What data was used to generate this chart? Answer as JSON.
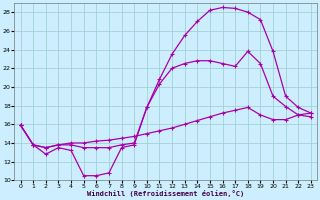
{
  "background_color": "#cceeff",
  "grid_color": "#99cccc",
  "line_color": "#aa00aa",
  "xlabel": "Windchill (Refroidissement éolien,°C)",
  "xlim": [
    -0.5,
    23.5
  ],
  "ylim": [
    10,
    29
  ],
  "xticks": [
    0,
    1,
    2,
    3,
    4,
    5,
    6,
    7,
    8,
    9,
    10,
    11,
    12,
    13,
    14,
    15,
    16,
    17,
    18,
    19,
    20,
    21,
    22,
    23
  ],
  "yticks": [
    10,
    12,
    14,
    16,
    18,
    20,
    22,
    24,
    26,
    28
  ],
  "curve1_x": [
    0,
    1,
    2,
    3,
    4,
    5,
    6,
    7,
    8,
    9,
    10,
    11,
    12,
    13,
    14,
    15,
    16,
    17,
    18,
    19,
    20,
    21,
    22,
    23
  ],
  "curve1_y": [
    15.9,
    13.8,
    12.8,
    13.5,
    13.2,
    10.5,
    10.5,
    10.8,
    13.5,
    13.8,
    17.8,
    20.8,
    23.5,
    25.5,
    27.0,
    28.2,
    28.5,
    28.4,
    28.0,
    27.2,
    23.8,
    19.0,
    17.8,
    17.2
  ],
  "curve2_x": [
    0,
    1,
    2,
    3,
    4,
    5,
    6,
    7,
    8,
    9,
    10,
    11,
    12,
    13,
    14,
    15,
    16,
    17,
    18,
    19,
    20,
    21,
    22,
    23
  ],
  "curve2_y": [
    15.9,
    13.8,
    13.5,
    13.8,
    14.0,
    14.0,
    14.2,
    14.3,
    14.5,
    14.7,
    15.0,
    15.3,
    15.6,
    16.0,
    16.4,
    16.8,
    17.2,
    17.5,
    17.8,
    17.0,
    16.5,
    16.5,
    17.0,
    17.2
  ],
  "curve3_x": [
    0,
    1,
    2,
    3,
    4,
    5,
    6,
    7,
    8,
    9,
    10,
    11,
    12,
    13,
    14,
    15,
    16,
    17,
    18,
    19,
    20,
    21,
    22,
    23
  ],
  "curve3_y": [
    15.9,
    13.8,
    13.5,
    13.8,
    13.8,
    13.5,
    13.5,
    13.5,
    13.8,
    14.0,
    17.8,
    20.3,
    22.0,
    22.5,
    22.8,
    22.8,
    22.5,
    22.2,
    23.8,
    22.5,
    19.0,
    17.9,
    17.0,
    16.8
  ]
}
